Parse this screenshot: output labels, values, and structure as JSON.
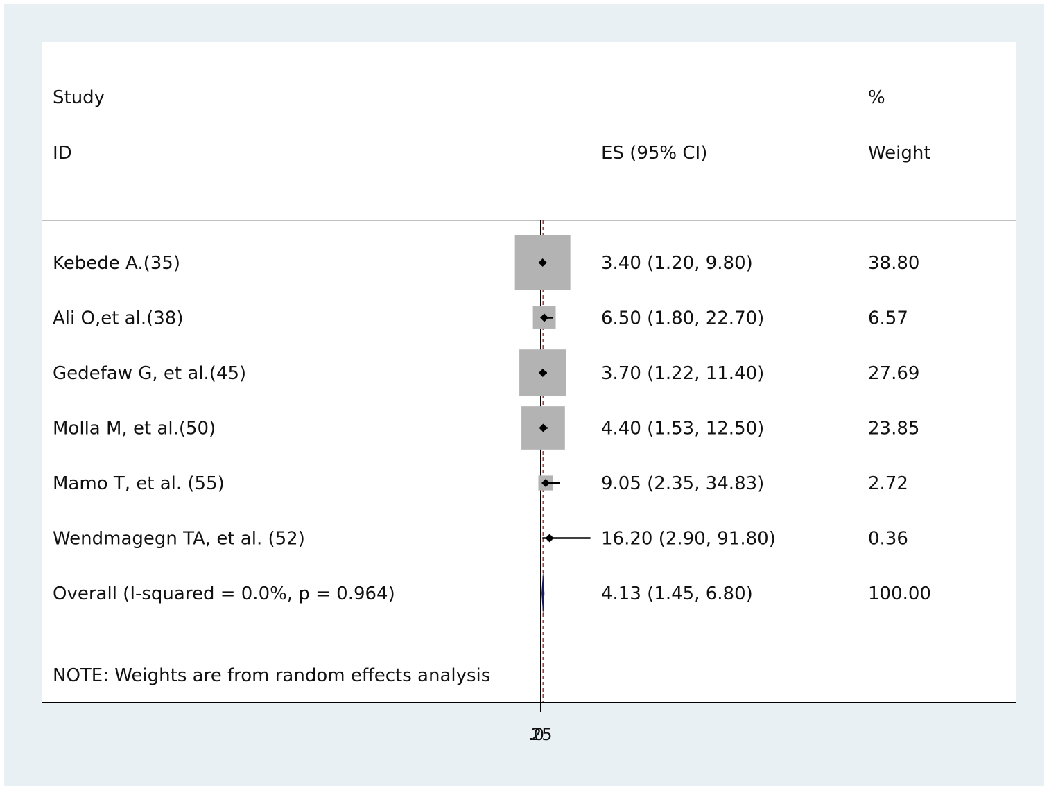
{
  "chart_data": {
    "type": "forest",
    "columns": {
      "study_top": "Study",
      "study": "ID",
      "es": "ES (95% CI)",
      "weight_top": "%",
      "weight": "Weight"
    },
    "studies": [
      {
        "label": "Kebede A.(35)",
        "es": 3.4,
        "lo": 1.2,
        "hi": 9.8,
        "es_text": "3.40 (1.20, 9.80)",
        "weight": 38.8,
        "weight_text": "38.80"
      },
      {
        "label": "Ali O,et al.(38)",
        "es": 6.5,
        "lo": 1.8,
        "hi": 22.7,
        "es_text": "6.50 (1.80, 22.70)",
        "weight": 6.57,
        "weight_text": "6.57"
      },
      {
        "label": "Gedefaw G, et al.(45)",
        "es": 3.7,
        "lo": 1.22,
        "hi": 11.4,
        "es_text": "3.70 (1.22, 11.40)",
        "weight": 27.69,
        "weight_text": "27.69"
      },
      {
        "label": "Molla M, et al.(50)",
        "es": 4.4,
        "lo": 1.53,
        "hi": 12.5,
        "es_text": "4.40 (1.53, 12.50)",
        "weight": 23.85,
        "weight_text": "23.85"
      },
      {
        "label": "Mamo T, et al. (55)",
        "es": 9.05,
        "lo": 2.35,
        "hi": 34.83,
        "es_text": "9.05 (2.35, 34.83)",
        "weight": 2.72,
        "weight_text": "2.72"
      },
      {
        "label": "Wendmagegn TA, et al. (52)",
        "es": 16.2,
        "lo": 2.9,
        "hi": 91.8,
        "es_text": "16.20 (2.90, 91.80)",
        "weight": 0.36,
        "weight_text": "0.36"
      }
    ],
    "overall": {
      "label": "Overall  (I-squared = 0.0%, p = 0.964)",
      "es": 4.13,
      "lo": 1.45,
      "hi": 6.8,
      "es_text": "4.13 (1.45, 6.80)",
      "weight_text": "100.00"
    },
    "note": "NOTE: Weights are from random effects analysis",
    "x_ticks": [
      ".0",
      "25"
    ],
    "null_line": 0,
    "colors": {
      "box": "#b3b3b3",
      "diamond": "#1a1a60",
      "overall_line": "#a8383a",
      "background": "#e8f0f3",
      "panel": "#ffffff"
    }
  }
}
